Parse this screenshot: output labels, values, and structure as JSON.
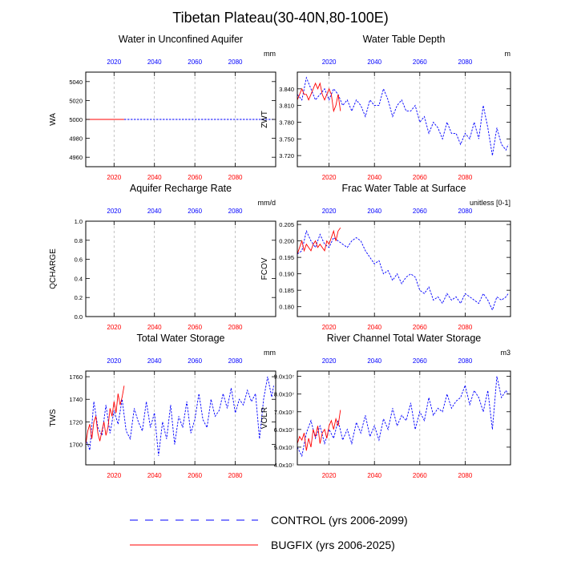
{
  "figure": {
    "title": "Tibetan Plateau(30-40N,80-100E)",
    "legend": [
      {
        "label": "CONTROL (yrs 2006-2099)",
        "color": "#0000ff",
        "style": "dashed"
      },
      {
        "label": "BUGFIX (yrs 2006-2025)",
        "color": "#ff0000",
        "style": "solid"
      }
    ]
  },
  "chart_data": [
    {
      "id": "wa",
      "type": "line",
      "title": "Water in Unconfined Aquifer",
      "units": "mm",
      "ylabel": "WA",
      "xlim": [
        2006,
        2100
      ],
      "ylim": [
        4950,
        5050
      ],
      "yticks": [
        4960,
        4980,
        5000,
        5020,
        5040
      ],
      "ytick_labels": [
        "4960",
        "4980",
        "5000",
        "5020",
        "5040"
      ],
      "xticks": [
        2020,
        2040,
        2060,
        2080
      ],
      "xtick_labels": [
        "2020",
        "2040",
        "2060",
        "2080"
      ],
      "grid": "vertical-dashed",
      "series": [
        {
          "name": "CONTROL",
          "color": "#0000ff",
          "style": "dashed",
          "x": [
            2006,
            2099
          ],
          "y": [
            5000,
            5000
          ]
        },
        {
          "name": "BUGFIX",
          "color": "#ff0000",
          "style": "solid",
          "x": [
            2006,
            2025
          ],
          "y": [
            5000,
            5000
          ]
        }
      ]
    },
    {
      "id": "zwt",
      "type": "line",
      "title": "Water Table Depth",
      "units": "m",
      "ylabel": "ZWT",
      "xlim": [
        2006,
        2100
      ],
      "ylim": [
        3.7,
        3.87
      ],
      "yticks": [
        3.72,
        3.75,
        3.78,
        3.81,
        3.84
      ],
      "ytick_labels": [
        "3.720",
        "3.750",
        "3.780",
        "3.810",
        "3.840"
      ],
      "xticks": [
        2020,
        2040,
        2060,
        2080
      ],
      "xtick_labels": [
        "2020",
        "2040",
        "2060",
        "2080"
      ],
      "grid": "vertical-dashed",
      "series": [
        {
          "name": "CONTROL",
          "color": "#0000ff",
          "style": "dashed",
          "x": [
            2006,
            2008,
            2010,
            2012,
            2014,
            2016,
            2018,
            2020,
            2022,
            2024,
            2026,
            2028,
            2030,
            2032,
            2034,
            2036,
            2038,
            2040,
            2042,
            2044,
            2046,
            2048,
            2050,
            2052,
            2054,
            2056,
            2058,
            2060,
            2062,
            2064,
            2066,
            2068,
            2070,
            2072,
            2074,
            2076,
            2078,
            2080,
            2082,
            2084,
            2086,
            2088,
            2090,
            2092,
            2094,
            2096,
            2098,
            2099
          ],
          "y": [
            3.83,
            3.82,
            3.86,
            3.84,
            3.82,
            3.83,
            3.84,
            3.82,
            3.84,
            3.83,
            3.81,
            3.82,
            3.8,
            3.82,
            3.81,
            3.79,
            3.82,
            3.81,
            3.81,
            3.84,
            3.82,
            3.79,
            3.81,
            3.82,
            3.8,
            3.8,
            3.81,
            3.78,
            3.79,
            3.76,
            3.78,
            3.77,
            3.75,
            3.78,
            3.76,
            3.76,
            3.74,
            3.76,
            3.75,
            3.78,
            3.75,
            3.81,
            3.77,
            3.72,
            3.77,
            3.74,
            3.73,
            3.74
          ]
        },
        {
          "name": "BUGFIX",
          "color": "#ff0000",
          "style": "solid",
          "x": [
            2006,
            2007,
            2008,
            2009,
            2010,
            2011,
            2012,
            2013,
            2014,
            2015,
            2016,
            2017,
            2018,
            2019,
            2020,
            2021,
            2022,
            2023,
            2024,
            2025
          ],
          "y": [
            3.82,
            3.83,
            3.84,
            3.83,
            3.83,
            3.82,
            3.83,
            3.84,
            3.85,
            3.84,
            3.85,
            3.83,
            3.82,
            3.83,
            3.84,
            3.83,
            3.8,
            3.81,
            3.83,
            3.8
          ]
        }
      ]
    },
    {
      "id": "qcharge",
      "type": "line",
      "title": "Aquifer Recharge Rate",
      "units": "mm/d",
      "ylabel": "QCHARGE",
      "xlim": [
        2006,
        2100
      ],
      "ylim": [
        0,
        1
      ],
      "yticks": [
        0,
        0.2,
        0.4,
        0.6,
        0.8,
        1.0
      ],
      "ytick_labels": [
        "0.0",
        "0.2",
        "0.4",
        "0.6",
        "0.8",
        "1.0"
      ],
      "xticks": [
        2020,
        2040,
        2060,
        2080
      ],
      "xtick_labels": [
        "2020",
        "2040",
        "2060",
        "2080"
      ],
      "grid": "vertical-dashed",
      "series": []
    },
    {
      "id": "fcov",
      "type": "line",
      "title": "Frac Water Table at Surface",
      "units": "unitless [0-1]",
      "ylabel": "FCOV",
      "xlim": [
        2006,
        2100
      ],
      "ylim": [
        0.177,
        0.206
      ],
      "yticks": [
        0.18,
        0.185,
        0.19,
        0.195,
        0.2,
        0.205
      ],
      "ytick_labels": [
        "0.180",
        "0.185",
        "0.190",
        "0.195",
        "0.200",
        "0.205"
      ],
      "xticks": [
        2020,
        2040,
        2060,
        2080
      ],
      "xtick_labels": [
        "2020",
        "2040",
        "2060",
        "2080"
      ],
      "grid": "vertical-dashed",
      "series": [
        {
          "name": "CONTROL",
          "color": "#0000ff",
          "style": "dashed",
          "x": [
            2006,
            2008,
            2010,
            2012,
            2014,
            2016,
            2018,
            2020,
            2022,
            2024,
            2026,
            2028,
            2030,
            2032,
            2034,
            2036,
            2038,
            2040,
            2042,
            2044,
            2046,
            2048,
            2050,
            2052,
            2054,
            2056,
            2058,
            2060,
            2062,
            2064,
            2066,
            2068,
            2070,
            2072,
            2074,
            2076,
            2078,
            2080,
            2082,
            2084,
            2086,
            2088,
            2090,
            2092,
            2094,
            2096,
            2098,
            2099
          ],
          "y": [
            0.196,
            0.197,
            0.203,
            0.2,
            0.198,
            0.202,
            0.199,
            0.198,
            0.201,
            0.2,
            0.199,
            0.198,
            0.2,
            0.201,
            0.2,
            0.197,
            0.195,
            0.193,
            0.194,
            0.19,
            0.191,
            0.188,
            0.19,
            0.187,
            0.189,
            0.19,
            0.189,
            0.185,
            0.184,
            0.186,
            0.182,
            0.183,
            0.181,
            0.184,
            0.182,
            0.183,
            0.181,
            0.184,
            0.183,
            0.182,
            0.181,
            0.184,
            0.182,
            0.179,
            0.183,
            0.182,
            0.183,
            0.184
          ]
        },
        {
          "name": "BUGFIX",
          "color": "#ff0000",
          "style": "solid",
          "x": [
            2006,
            2007,
            2008,
            2009,
            2010,
            2011,
            2012,
            2013,
            2014,
            2015,
            2016,
            2017,
            2018,
            2019,
            2020,
            2021,
            2022,
            2023,
            2024,
            2025
          ],
          "y": [
            0.196,
            0.198,
            0.2,
            0.197,
            0.199,
            0.198,
            0.197,
            0.199,
            0.2,
            0.198,
            0.199,
            0.198,
            0.197,
            0.2,
            0.199,
            0.201,
            0.203,
            0.2,
            0.203,
            0.204
          ]
        }
      ]
    },
    {
      "id": "tws",
      "type": "line",
      "title": "Total Water Storage",
      "units": "mm",
      "ylabel": "TWS",
      "xlim": [
        2006,
        2100
      ],
      "ylim": [
        1682,
        1765
      ],
      "yticks": [
        1700,
        1720,
        1740,
        1760
      ],
      "ytick_labels": [
        "1700",
        "1720",
        "1740",
        "1760"
      ],
      "xticks": [
        2020,
        2040,
        2060,
        2080
      ],
      "xtick_labels": [
        "2020",
        "2040",
        "2060",
        "2080"
      ],
      "grid": "vertical-dashed",
      "series": [
        {
          "name": "CONTROL",
          "color": "#0000ff",
          "style": "dashed",
          "x": [
            2006,
            2008,
            2010,
            2012,
            2014,
            2016,
            2018,
            2020,
            2022,
            2024,
            2026,
            2028,
            2030,
            2032,
            2034,
            2036,
            2038,
            2040,
            2042,
            2044,
            2046,
            2048,
            2050,
            2052,
            2054,
            2056,
            2058,
            2060,
            2062,
            2064,
            2066,
            2068,
            2070,
            2072,
            2074,
            2076,
            2078,
            2080,
            2082,
            2084,
            2086,
            2088,
            2090,
            2092,
            2094,
            2096,
            2098,
            2099
          ],
          "y": [
            1705,
            1695,
            1738,
            1715,
            1708,
            1735,
            1710,
            1730,
            1718,
            1740,
            1712,
            1705,
            1732,
            1720,
            1712,
            1738,
            1715,
            1728,
            1690,
            1720,
            1705,
            1735,
            1700,
            1725,
            1715,
            1738,
            1710,
            1722,
            1745,
            1722,
            1715,
            1740,
            1725,
            1730,
            1745,
            1732,
            1750,
            1728,
            1740,
            1735,
            1748,
            1738,
            1745,
            1705,
            1740,
            1760,
            1742,
            1752
          ]
        },
        {
          "name": "BUGFIX",
          "color": "#ff0000",
          "style": "solid",
          "x": [
            2006,
            2007,
            2008,
            2009,
            2010,
            2011,
            2012,
            2013,
            2014,
            2015,
            2016,
            2017,
            2018,
            2019,
            2020,
            2021,
            2022,
            2023,
            2024,
            2025
          ],
          "y": [
            1700,
            1712,
            1718,
            1705,
            1720,
            1725,
            1710,
            1703,
            1712,
            1720,
            1708,
            1715,
            1732,
            1725,
            1738,
            1728,
            1745,
            1735,
            1742,
            1752
          ]
        }
      ]
    },
    {
      "id": "volr",
      "type": "line",
      "title": "River Channel Total Water Storage",
      "units": "m3",
      "ylabel": "VOLR",
      "xlim": [
        2006,
        2100
      ],
      "ylim": [
        40000000.0,
        93000000.0
      ],
      "yticks": [
        40000000.0,
        50000000.0,
        60000000.0,
        70000000.0,
        80000000.0,
        90000000.0
      ],
      "ytick_labels": [
        "4.0x10⁷",
        "5.0x10⁷",
        "6.0x10⁷",
        "7.0x10⁷",
        "8.0x10⁷",
        "9.0x10⁷"
      ],
      "xticks": [
        2020,
        2040,
        2060,
        2080
      ],
      "xtick_labels": [
        "2020",
        "2040",
        "2060",
        "2080"
      ],
      "grid": "vertical-dashed",
      "series": [
        {
          "name": "CONTROL",
          "color": "#0000ff",
          "style": "dashed",
          "x": [
            2006,
            2008,
            2010,
            2012,
            2014,
            2016,
            2018,
            2020,
            2022,
            2024,
            2026,
            2028,
            2030,
            2032,
            2034,
            2036,
            2038,
            2040,
            2042,
            2044,
            2046,
            2048,
            2050,
            2052,
            2054,
            2056,
            2058,
            2060,
            2062,
            2064,
            2066,
            2068,
            2070,
            2072,
            2074,
            2076,
            2078,
            2080,
            2082,
            2084,
            2086,
            2088,
            2090,
            2092,
            2094,
            2096,
            2098,
            2099
          ],
          "y": [
            50000000.0,
            45000000.0,
            58000000.0,
            65000000.0,
            55000000.0,
            62000000.0,
            52000000.0,
            60000000.0,
            55000000.0,
            65000000.0,
            54000000.0,
            60000000.0,
            52000000.0,
            64000000.0,
            58000000.0,
            68000000.0,
            56000000.0,
            62000000.0,
            54000000.0,
            66000000.0,
            60000000.0,
            72000000.0,
            62000000.0,
            68000000.0,
            65000000.0,
            75000000.0,
            60000000.0,
            70000000.0,
            65000000.0,
            78000000.0,
            68000000.0,
            72000000.0,
            70000000.0,
            80000000.0,
            72000000.0,
            76000000.0,
            78000000.0,
            85000000.0,
            74000000.0,
            82000000.0,
            78000000.0,
            70000000.0,
            82000000.0,
            60000000.0,
            90000000.0,
            78000000.0,
            82000000.0,
            80000000.0
          ]
        },
        {
          "name": "BUGFIX",
          "color": "#ff0000",
          "style": "solid",
          "x": [
            2006,
            2007,
            2008,
            2009,
            2010,
            2011,
            2012,
            2013,
            2014,
            2015,
            2016,
            2017,
            2018,
            2019,
            2020,
            2021,
            2022,
            2023,
            2024,
            2025
          ],
          "y": [
            52000000.0,
            56000000.0,
            54000000.0,
            58000000.0,
            48000000.0,
            55000000.0,
            50000000.0,
            60000000.0,
            56000000.0,
            62000000.0,
            52000000.0,
            58000000.0,
            60000000.0,
            55000000.0,
            62000000.0,
            65000000.0,
            60000000.0,
            66000000.0,
            62000000.0,
            71000000.0
          ]
        }
      ]
    }
  ]
}
